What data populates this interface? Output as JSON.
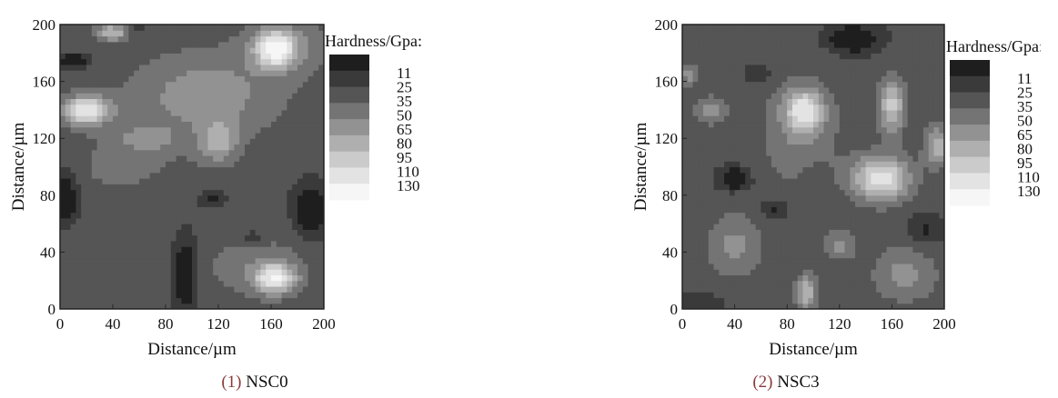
{
  "chart_data": [
    {
      "type": "heatmap",
      "caption_number": "(1)",
      "caption_label": "NSC0",
      "xlabel": "Distance/µm",
      "ylabel": "Distance/µm",
      "xlim": [
        0,
        200
      ],
      "ylim": [
        0,
        200
      ],
      "x_ticks": [
        "0",
        "40",
        "80",
        "120",
        "160",
        "200"
      ],
      "y_ticks": [
        "0",
        "40",
        "80",
        "120",
        "160",
        "200"
      ],
      "legend_title": "Hardness/Gpa:",
      "levels": [
        "11",
        "25",
        "35",
        "50",
        "65",
        "80",
        "95",
        "110",
        "130"
      ],
      "level_colors": [
        "#1e1e1e",
        "#3a3a3a",
        "#555555",
        "#747474",
        "#929292",
        "#afafaf",
        "#cbcbcb",
        "#e3e3e3",
        "#f6f6f6"
      ],
      "background_hardness": 40,
      "peaks": [
        {
          "x": 20,
          "y": 140,
          "value": 125,
          "rx": 18,
          "ry": 10
        },
        {
          "x": 163,
          "y": 183,
          "value": 120,
          "rx": 14,
          "ry": 12
        },
        {
          "x": 163,
          "y": 22,
          "value": 120,
          "rx": 15,
          "ry": 10
        },
        {
          "x": 40,
          "y": 195,
          "value": 95,
          "rx": 12,
          "ry": 6
        },
        {
          "x": 110,
          "y": 150,
          "value": 75,
          "rx": 55,
          "ry": 30
        },
        {
          "x": 120,
          "y": 118,
          "value": 82,
          "rx": 14,
          "ry": 14
        },
        {
          "x": 65,
          "y": 120,
          "value": 68,
          "rx": 20,
          "ry": 8
        },
        {
          "x": 170,
          "y": 185,
          "value": 70,
          "rx": 30,
          "ry": 20
        },
        {
          "x": 45,
          "y": 100,
          "value": 52,
          "rx": 55,
          "ry": 28
        },
        {
          "x": 20,
          "y": 40,
          "value": 50,
          "rx": 20,
          "ry": 18
        },
        {
          "x": 150,
          "y": 30,
          "value": 60,
          "rx": 40,
          "ry": 22
        },
        {
          "x": 95,
          "y": 25,
          "value": 11,
          "rx": 10,
          "ry": 28
        },
        {
          "x": 5,
          "y": 80,
          "value": 11,
          "rx": 10,
          "ry": 22
        },
        {
          "x": 10,
          "y": 175,
          "value": 15,
          "rx": 14,
          "ry": 5
        },
        {
          "x": 190,
          "y": 70,
          "value": 12,
          "rx": 14,
          "ry": 20
        },
        {
          "x": 115,
          "y": 78,
          "value": 22,
          "rx": 12,
          "ry": 6
        },
        {
          "x": 55,
          "y": 198,
          "value": 25,
          "rx": 10,
          "ry": 4
        },
        {
          "x": 145,
          "y": 50,
          "value": 22,
          "rx": 10,
          "ry": 6
        }
      ]
    },
    {
      "type": "heatmap",
      "caption_number": "(2)",
      "caption_label": "NSC3",
      "xlabel": "Distance/µm",
      "ylabel": "Distance/µm",
      "xlim": [
        0,
        200
      ],
      "ylim": [
        0,
        200
      ],
      "x_ticks": [
        "0",
        "40",
        "80",
        "120",
        "160",
        "200"
      ],
      "y_ticks": [
        "0",
        "40",
        "80",
        "120",
        "160",
        "200"
      ],
      "legend_title": "Hardness/Gpa:",
      "levels": [
        "11",
        "25",
        "35",
        "50",
        "65",
        "80",
        "95",
        "110",
        "130"
      ],
      "level_colors": [
        "#1e1e1e",
        "#3a3a3a",
        "#555555",
        "#747474",
        "#929292",
        "#afafaf",
        "#cbcbcb",
        "#e3e3e3",
        "#f6f6f6"
      ],
      "background_hardness": 38,
      "peaks": [
        {
          "x": 152,
          "y": 92,
          "value": 120,
          "rx": 22,
          "ry": 16
        },
        {
          "x": 93,
          "y": 140,
          "value": 105,
          "rx": 14,
          "ry": 14
        },
        {
          "x": 160,
          "y": 143,
          "value": 100,
          "rx": 10,
          "ry": 20
        },
        {
          "x": 95,
          "y": 12,
          "value": 95,
          "rx": 8,
          "ry": 12
        },
        {
          "x": 195,
          "y": 115,
          "value": 90,
          "rx": 10,
          "ry": 14
        },
        {
          "x": 40,
          "y": 45,
          "value": 70,
          "rx": 22,
          "ry": 22
        },
        {
          "x": 120,
          "y": 45,
          "value": 72,
          "rx": 12,
          "ry": 10
        },
        {
          "x": 22,
          "y": 140,
          "value": 72,
          "rx": 12,
          "ry": 10
        },
        {
          "x": 90,
          "y": 125,
          "value": 65,
          "rx": 30,
          "ry": 40
        },
        {
          "x": 170,
          "y": 25,
          "value": 70,
          "rx": 25,
          "ry": 20
        },
        {
          "x": 5,
          "y": 165,
          "value": 70,
          "rx": 8,
          "ry": 8
        },
        {
          "x": 40,
          "y": 92,
          "value": 11,
          "rx": 12,
          "ry": 8
        },
        {
          "x": 130,
          "y": 190,
          "value": 11,
          "rx": 20,
          "ry": 10
        },
        {
          "x": 70,
          "y": 70,
          "value": 20,
          "rx": 12,
          "ry": 8
        },
        {
          "x": 60,
          "y": 165,
          "value": 25,
          "rx": 12,
          "ry": 8
        },
        {
          "x": 185,
          "y": 55,
          "value": 22,
          "rx": 14,
          "ry": 12
        },
        {
          "x": 100,
          "y": 95,
          "value": 28,
          "rx": 10,
          "ry": 10
        },
        {
          "x": 10,
          "y": 5,
          "value": 25,
          "rx": 20,
          "ry": 6
        }
      ]
    }
  ]
}
